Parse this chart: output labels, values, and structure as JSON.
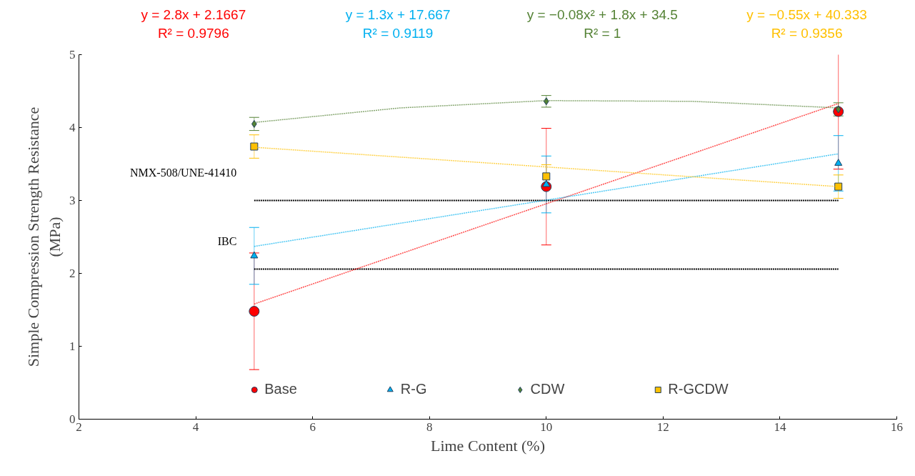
{
  "chart_data": {
    "type": "scatter",
    "xlabel": "Lime Content (%)",
    "ylabel": "Simple Compression Strength Resistance\n(MPa)",
    "xlim": [
      2,
      16
    ],
    "xticks": [
      2,
      4,
      6,
      8,
      10,
      12,
      14,
      16
    ],
    "ylim": [
      0,
      5
    ],
    "yticks": [
      0,
      1,
      2,
      3,
      4,
      5
    ],
    "grid": false,
    "legend": "bottom",
    "series": [
      {
        "name": "Base",
        "marker": "circle",
        "color": "#ff0000",
        "x": [
          5,
          10,
          15
        ],
        "values": [
          1.48,
          3.19,
          4.22
        ],
        "errors": [
          0.8,
          0.8,
          0.79
        ]
      },
      {
        "name": "R-G",
        "marker": "triangle",
        "color": "#00b0f0",
        "x": [
          5,
          10,
          15
        ],
        "values": [
          2.24,
          3.22,
          3.51
        ],
        "errors": [
          0.39,
          0.39,
          0.38
        ]
      },
      {
        "name": "CDW",
        "marker": "diamond",
        "color": "#548235",
        "x": [
          5,
          10,
          15
        ],
        "values": [
          4.05,
          4.36,
          4.25
        ],
        "errors": [
          0.09,
          0.08,
          0.09
        ]
      },
      {
        "name": "R-GCDW",
        "marker": "square",
        "color": "#ffc000",
        "x": [
          5,
          10,
          15
        ],
        "values": [
          3.74,
          3.33,
          3.19
        ],
        "errors": [
          0.16,
          0.16,
          0.16
        ]
      },
      {
        "type": "line",
        "line_style": "dotted",
        "color": "#ff0000",
        "x": [
          5,
          15
        ],
        "values": [
          1.58,
          4.33
        ]
      },
      {
        "type": "line",
        "line_style": "dotted",
        "color": "#00b0f0",
        "x": [
          5,
          15
        ],
        "values": [
          2.37,
          3.64
        ]
      },
      {
        "type": "line",
        "line_style": "dotted",
        "color": "#548235",
        "x": [
          5,
          7.5,
          10,
          12.5,
          15
        ],
        "values": [
          4.07,
          4.27,
          4.37,
          4.36,
          4.27
        ]
      },
      {
        "type": "line",
        "line_style": "dotted",
        "color": "#ffc000",
        "x": [
          5,
          15
        ],
        "values": [
          3.73,
          3.19
        ]
      }
    ],
    "ref_lines": [
      {
        "axis": "y",
        "value": 3,
        "label": "NMX-508/UNE-41410",
        "color": "#000000",
        "line_style": "dotted"
      },
      {
        "axis": "y",
        "value": 2.06,
        "label": "IBC",
        "color": "#000000",
        "line_style": "dotted"
      }
    ],
    "annotations": [
      "y = 2.8x + 2.1667\nR² = 0.9796",
      "y = 1.3x + 17.667\nR² = 0.9119",
      "y = −0.08x² + 1.8x + 34.5\nR² = 1",
      "y = −0.55x + 40.333\nR² = 0.9356"
    ]
  }
}
